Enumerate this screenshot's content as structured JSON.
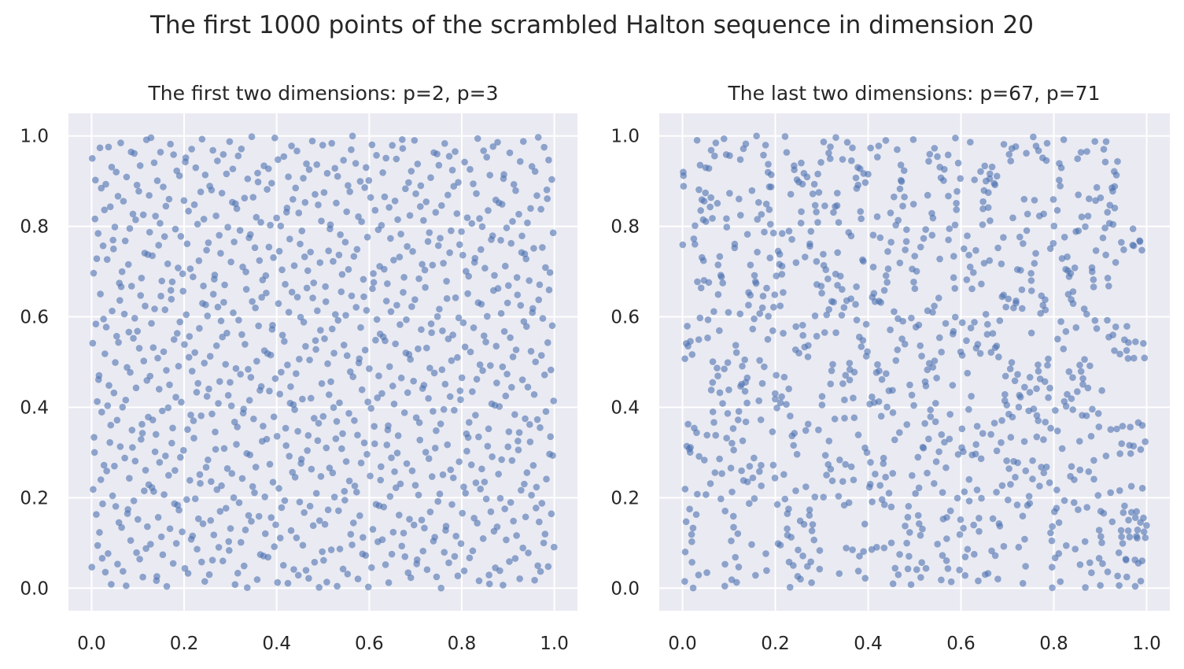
{
  "figure": {
    "suptitle": "The first 1000 points of the scrambled Halton sequence in dimension 20"
  },
  "style": {
    "axes_bg": "#EAEAF2",
    "grid_color": "#FFFFFF",
    "marker_color": "#4C72B0",
    "marker_alpha": 0.6,
    "text_color": "#262626"
  },
  "chart_data": [
    {
      "type": "scatter",
      "title": "The first two dimensions: p=2, p=3",
      "bases": [
        2,
        3
      ],
      "n_points": 1000,
      "point_generation": "scrambled Halton sequence, first 1000 points, projected onto dimensions with bases 2 and 3",
      "xlim": [
        -0.05,
        1.05
      ],
      "ylim": [
        -0.05,
        1.05
      ],
      "xticks": [
        "0.0",
        "0.2",
        "0.4",
        "0.6",
        "0.8",
        "1.0"
      ],
      "yticks": [
        "0.0",
        "0.2",
        "0.4",
        "0.6",
        "0.8",
        "1.0"
      ],
      "grid": true,
      "xlabel": "",
      "ylabel": ""
    },
    {
      "type": "scatter",
      "title": "The last two dimensions: p=67, p=71",
      "bases": [
        67,
        71
      ],
      "n_points": 1000,
      "point_generation": "scrambled Halton sequence, first 1000 points, projected onto dimensions with bases 67 and 71",
      "xlim": [
        -0.05,
        1.05
      ],
      "ylim": [
        -0.05,
        1.05
      ],
      "xticks": [
        "0.0",
        "0.2",
        "0.4",
        "0.6",
        "0.8",
        "1.0"
      ],
      "yticks": [
        "0.0",
        "0.2",
        "0.4",
        "0.6",
        "0.8",
        "1.0"
      ],
      "grid": true,
      "xlabel": "",
      "ylabel": ""
    }
  ]
}
